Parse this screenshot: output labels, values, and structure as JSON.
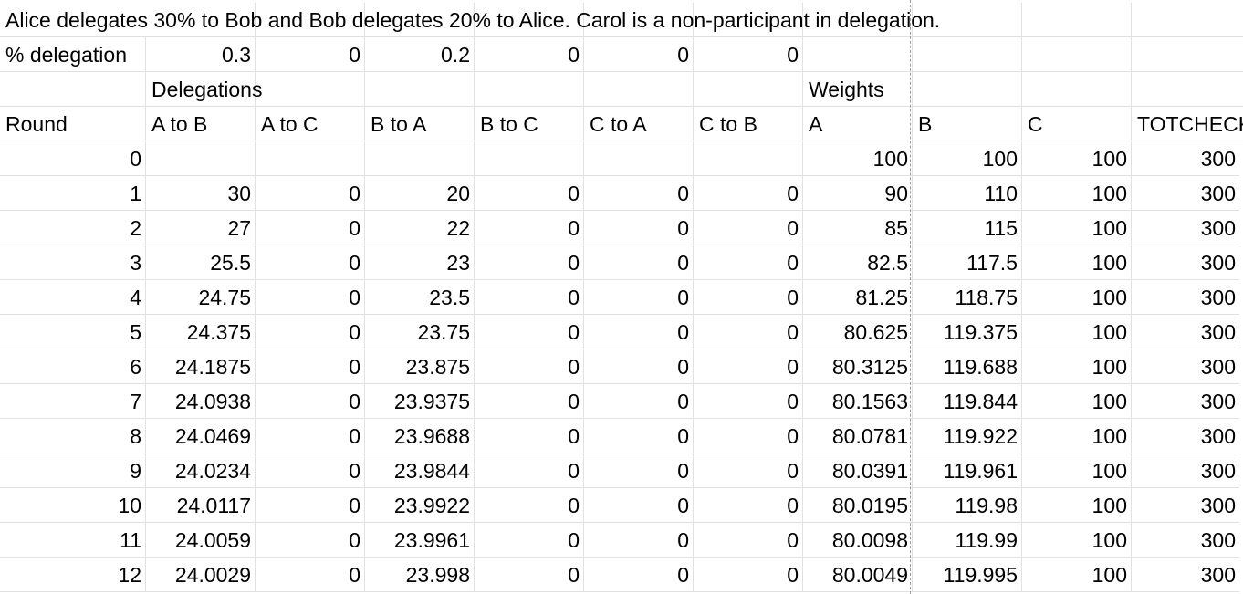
{
  "title": "Alice delegates 30% to Bob and Bob delegates 20% to Alice. Carol is a non-participant in delegation.",
  "delegation_row": {
    "label": "% delegation",
    "values": [
      "0.3",
      "0",
      "0.2",
      "0",
      "0",
      "0"
    ]
  },
  "group_headers": {
    "delegations": "Delegations",
    "weights": "Weights"
  },
  "headers": [
    "Round",
    "A to B",
    "A to C",
    "B to A",
    "B to C",
    "C to A",
    "C to B",
    "A",
    "B",
    "C",
    "TOTCHECK"
  ],
  "rows": [
    [
      "0",
      "",
      "",
      "",
      "",
      "",
      "",
      "100",
      "100",
      "100",
      "300"
    ],
    [
      "1",
      "30",
      "0",
      "20",
      "0",
      "0",
      "0",
      "90",
      "110",
      "100",
      "300"
    ],
    [
      "2",
      "27",
      "0",
      "22",
      "0",
      "0",
      "0",
      "85",
      "115",
      "100",
      "300"
    ],
    [
      "3",
      "25.5",
      "0",
      "23",
      "0",
      "0",
      "0",
      "82.5",
      "117.5",
      "100",
      "300"
    ],
    [
      "4",
      "24.75",
      "0",
      "23.5",
      "0",
      "0",
      "0",
      "81.25",
      "118.75",
      "100",
      "300"
    ],
    [
      "5",
      "24.375",
      "0",
      "23.75",
      "0",
      "0",
      "0",
      "80.625",
      "119.375",
      "100",
      "300"
    ],
    [
      "6",
      "24.1875",
      "0",
      "23.875",
      "0",
      "0",
      "0",
      "80.3125",
      "119.688",
      "100",
      "300"
    ],
    [
      "7",
      "24.0938",
      "0",
      "23.9375",
      "0",
      "0",
      "0",
      "80.1563",
      "119.844",
      "100",
      "300"
    ],
    [
      "8",
      "24.0469",
      "0",
      "23.9688",
      "0",
      "0",
      "0",
      "80.0781",
      "119.922",
      "100",
      "300"
    ],
    [
      "9",
      "24.0234",
      "0",
      "23.9844",
      "0",
      "0",
      "0",
      "80.0391",
      "119.961",
      "100",
      "300"
    ],
    [
      "10",
      "24.0117",
      "0",
      "23.9922",
      "0",
      "0",
      "0",
      "80.0195",
      "119.98",
      "100",
      "300"
    ],
    [
      "11",
      "24.0059",
      "0",
      "23.9961",
      "0",
      "0",
      "0",
      "80.0098",
      "119.99",
      "100",
      "300"
    ],
    [
      "12",
      "24.0029",
      "0",
      "23.998",
      "0",
      "0",
      "0",
      "80.0049",
      "119.995",
      "100",
      "300"
    ]
  ]
}
